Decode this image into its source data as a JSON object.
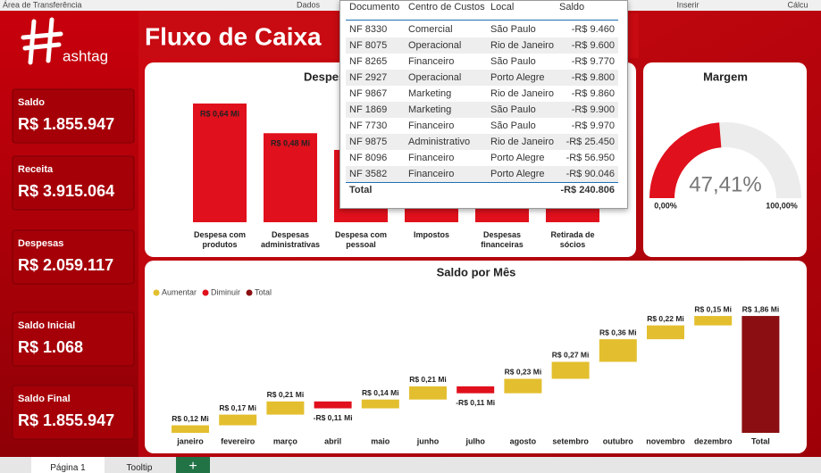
{
  "ribbon": [
    "Área de Transferência",
    "Dados",
    "Inserir",
    "Cálcu"
  ],
  "logo": "ashtag",
  "title": "Fluxo de Caixa",
  "kpis": [
    {
      "label": "Saldo",
      "value": "R$ 1.855.947"
    },
    {
      "label": "Receita",
      "value": "R$ 3.915.064"
    },
    {
      "label": "Despesas",
      "value": "R$ 2.059.117"
    },
    {
      "label": "Saldo Inicial",
      "value": "R$ 1.068"
    },
    {
      "label": "Saldo Final",
      "value": "R$ 1.855.947"
    }
  ],
  "expense_chart": {
    "type": "bar",
    "title": "Despesas",
    "categories": [
      "Despesa com produtos",
      "Despesas administrativas",
      "Despesa com pessoal",
      "Impostos",
      "Despesas financeiras",
      "Retirada de sócios"
    ],
    "values": [
      0.64,
      0.48,
      0.39,
      0.27,
      0.17,
      0.11
    ],
    "value_labels": [
      "R$ 0,64 Mi",
      "R$ 0,48 Mi",
      null,
      null,
      null,
      null
    ],
    "color": "#e0101c"
  },
  "table": {
    "columns": [
      "Documento",
      "Centro de Custos",
      "Local",
      "Saldo"
    ],
    "rows": [
      [
        "NF 8330",
        "Comercial",
        "São Paulo",
        "-R$ 9.460"
      ],
      [
        "NF 8075",
        "Operacional",
        "Rio de Janeiro",
        "-R$ 9.600"
      ],
      [
        "NF 8265",
        "Financeiro",
        "São Paulo",
        "-R$ 9.770"
      ],
      [
        "NF 2927",
        "Operacional",
        "Porto Alegre",
        "-R$ 9.800"
      ],
      [
        "NF 9867",
        "Marketing",
        "Rio de Janeiro",
        "-R$ 9.860"
      ],
      [
        "NF 1869",
        "Marketing",
        "São Paulo",
        "-R$ 9.900"
      ],
      [
        "NF 7730",
        "Financeiro",
        "São Paulo",
        "-R$ 9.970"
      ],
      [
        "NF 9875",
        "Administrativo",
        "Rio de Janeiro",
        "-R$ 25.450"
      ],
      [
        "NF 8096",
        "Financeiro",
        "Porto Alegre",
        "-R$ 56.950"
      ],
      [
        "NF 3582",
        "Financeiro",
        "Porto Alegre",
        "-R$ 90.046"
      ]
    ],
    "total": [
      "Total",
      "-R$ 240.806"
    ]
  },
  "gauge": {
    "type": "gauge",
    "title": "Margem",
    "value": 47.41,
    "value_label": "47,41%",
    "min": {
      "value": 0,
      "label": "0,00%"
    },
    "max": {
      "value": 100,
      "label": "100,00%"
    },
    "color": "#e0101c",
    "track_color": "#ececec"
  },
  "waterfall": {
    "type": "waterfall",
    "title": "Saldo por Mês",
    "legend": [
      {
        "name": "Aumentar",
        "color": "#e3bf2f"
      },
      {
        "name": "Diminuir",
        "color": "#e0101c"
      },
      {
        "name": "Total",
        "color": "#8b0f12"
      }
    ],
    "categories": [
      "janeiro",
      "fevereiro",
      "março",
      "abril",
      "maio",
      "junho",
      "julho",
      "agosto",
      "setembro",
      "outubro",
      "novembro",
      "dezembro"
    ],
    "values": [
      0.12,
      0.17,
      0.21,
      -0.11,
      0.14,
      0.21,
      -0.11,
      0.23,
      0.27,
      0.36,
      0.22,
      0.15
    ],
    "value_labels": [
      "R$ 0,12 Mi",
      "R$ 0,17 Mi",
      "R$ 0,21 Mi",
      "-R$ 0,11 Mi",
      "R$ 0,14 Mi",
      "R$ 0,21 Mi",
      "-R$ 0,11 Mi",
      "R$ 0,23 Mi",
      "R$ 0,27 Mi",
      "R$ 0,36 Mi",
      "R$ 0,22 Mi",
      "R$ 0,15 Mi"
    ],
    "total": {
      "label": "Total",
      "value": 1.86,
      "value_label": "R$ 1,86 Mi"
    }
  },
  "tabs": [
    "Página 1",
    "Tooltip",
    "+"
  ]
}
